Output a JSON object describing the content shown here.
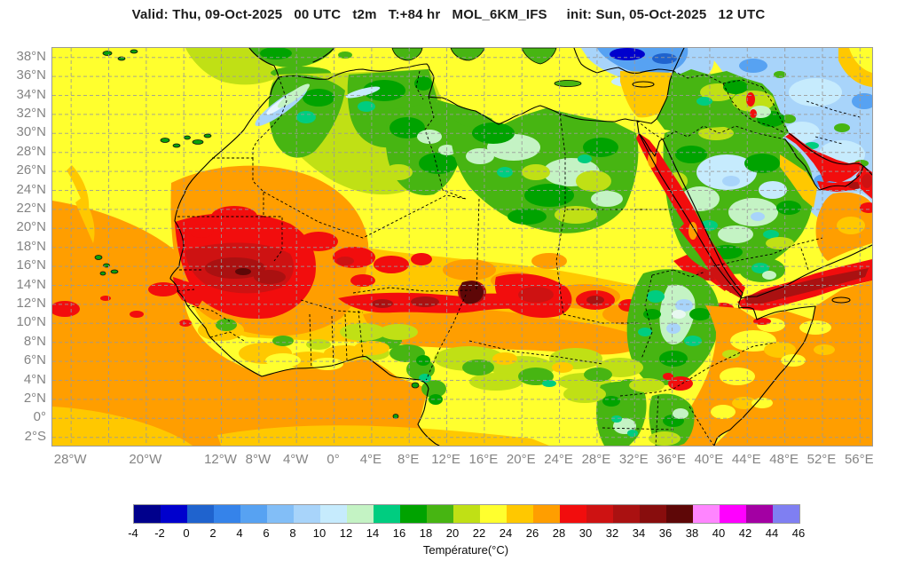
{
  "title": "Valid: Thu, 09-Oct-2025   00 UTC   t2m   T:+84 hr   MOL_6KM_IFS     init: Sun, 05-Oct-2025   12 UTC",
  "map": {
    "description": "2-metre temperature forecast map, North Africa / Arabia domain",
    "lat_ticks": [
      {
        "label": "38°N",
        "lat": 38
      },
      {
        "label": "36°N",
        "lat": 36
      },
      {
        "label": "34°N",
        "lat": 34
      },
      {
        "label": "32°N",
        "lat": 32
      },
      {
        "label": "30°N",
        "lat": 30
      },
      {
        "label": "28°N",
        "lat": 28
      },
      {
        "label": "26°N",
        "lat": 26
      },
      {
        "label": "24°N",
        "lat": 24
      },
      {
        "label": "22°N",
        "lat": 22
      },
      {
        "label": "20°N",
        "lat": 20
      },
      {
        "label": "18°N",
        "lat": 18
      },
      {
        "label": "16°N",
        "lat": 16
      },
      {
        "label": "14°N",
        "lat": 14
      },
      {
        "label": "12°N",
        "lat": 12
      },
      {
        "label": "10°N",
        "lat": 10
      },
      {
        "label": "8°N",
        "lat": 8
      },
      {
        "label": "6°N",
        "lat": 6
      },
      {
        "label": "4°N",
        "lat": 4
      },
      {
        "label": "2°N",
        "lat": 2
      },
      {
        "label": "0°",
        "lat": 0
      },
      {
        "label": "2°S",
        "lat": -2
      }
    ],
    "lon_ticks": [
      {
        "label": "28°W",
        "lon": -28
      },
      {
        "label": "20°W",
        "lon": -20
      },
      {
        "label": "12°W",
        "lon": -12
      },
      {
        "label": "8°W",
        "lon": -8
      },
      {
        "label": "4°W",
        "lon": -4
      },
      {
        "label": "0°",
        "lon": 0
      },
      {
        "label": "4°E",
        "lon": 4
      },
      {
        "label": "8°E",
        "lon": 8
      },
      {
        "label": "12°E",
        "lon": 12
      },
      {
        "label": "16°E",
        "lon": 16
      },
      {
        "label": "20°E",
        "lon": 20
      },
      {
        "label": "24°E",
        "lon": 24
      },
      {
        "label": "28°E",
        "lon": 28
      },
      {
        "label": "32°E",
        "lon": 32
      },
      {
        "label": "36°E",
        "lon": 36
      },
      {
        "label": "40°E",
        "lon": 40
      },
      {
        "label": "44°E",
        "lon": 44
      },
      {
        "label": "48°E",
        "lon": 48
      },
      {
        "label": "52°E",
        "lon": 52
      },
      {
        "label": "56°E",
        "lon": 56
      }
    ]
  },
  "colorbar": {
    "caption": "Température(°C)",
    "tick_labels": [
      "-4",
      "-2",
      "0",
      "2",
      "4",
      "6",
      "8",
      "10",
      "12",
      "14",
      "16",
      "18",
      "20",
      "22",
      "24",
      "26",
      "28",
      "30",
      "32",
      "34",
      "36",
      "38",
      "40",
      "42",
      "44",
      "46"
    ],
    "cell_colors": [
      "#00008C",
      "#0000CD",
      "#1F63CE",
      "#3583EA",
      "#57A2F2",
      "#82BEF7",
      "#A8D4FA",
      "#C6EBFD",
      "#C4F3C4",
      "#00CD80",
      "#00A300",
      "#47B512",
      "#C0E015",
      "#FFFF2E",
      "#FFC800",
      "#FF9E00",
      "#F20D0D",
      "#CE1212",
      "#AA1111",
      "#880D0D",
      "#5E0707",
      "#FF85FF",
      "#FF00FF",
      "#A300A3",
      "#7F7FF2"
    ]
  },
  "colors": {
    "title_text": "#1c1c1c",
    "axis_text": "#848484",
    "map_border": "#9a9a9a",
    "gridline": "#9a9a9a",
    "coastline": "#000000"
  }
}
